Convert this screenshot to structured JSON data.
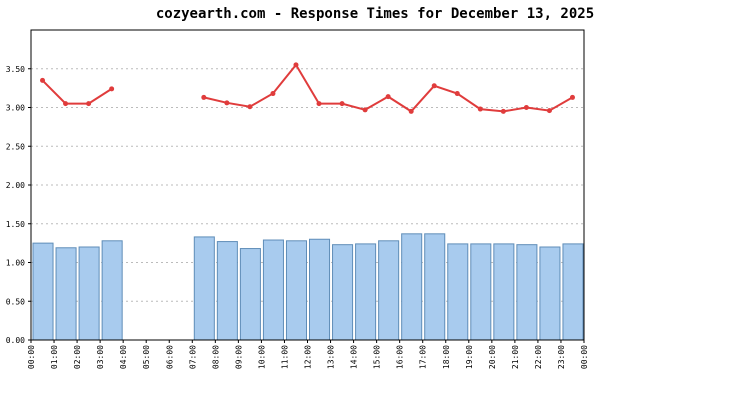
{
  "chart_data": {
    "type": "bar_line",
    "title": "cozyearth.com - Response Times for December 13, 2025",
    "x_labels": [
      "00:00",
      "01:00",
      "02:00",
      "03:00",
      "04:00",
      "05:00",
      "06:00",
      "07:00",
      "08:00",
      "09:00",
      "10:00",
      "11:00",
      "12:00",
      "13:00",
      "14:00",
      "15:00",
      "16:00",
      "17:00",
      "18:00",
      "19:00",
      "20:00",
      "21:00",
      "22:00",
      "23:00",
      "00:00"
    ],
    "series": [
      {
        "type": "bar",
        "color": "#a8cbee",
        "edge": "#5f8db8",
        "values": [
          1.25,
          1.19,
          1.2,
          1.28,
          null,
          null,
          null,
          1.33,
          1.27,
          1.18,
          1.29,
          1.28,
          1.3,
          1.23,
          1.24,
          1.28,
          1.37,
          1.37,
          1.24,
          1.24,
          1.24,
          1.23,
          1.2,
          1.24
        ]
      },
      {
        "type": "line",
        "color": "#e03c3c",
        "values": [
          3.35,
          3.05,
          3.05,
          3.24,
          null,
          null,
          null,
          3.13,
          3.06,
          3.01,
          3.18,
          3.55,
          3.05,
          3.05,
          2.97,
          3.14,
          2.95,
          3.28,
          3.18,
          2.98,
          2.95,
          3.0,
          2.96,
          3.13
        ]
      }
    ],
    "ylim": [
      0,
      4
    ],
    "yticks": [
      {
        "value": 0,
        "label": "0.00"
      },
      {
        "value": 0.5,
        "label": "0.50"
      },
      {
        "value": 1,
        "label": "1.00"
      },
      {
        "value": 1.5,
        "label": "1.50"
      },
      {
        "value": 2,
        "label": "2.00"
      },
      {
        "value": 2.5,
        "label": "2.50"
      },
      {
        "value": 3,
        "label": "3.00"
      },
      {
        "value": 3.5,
        "label": "3.50"
      }
    ],
    "grid": true
  }
}
